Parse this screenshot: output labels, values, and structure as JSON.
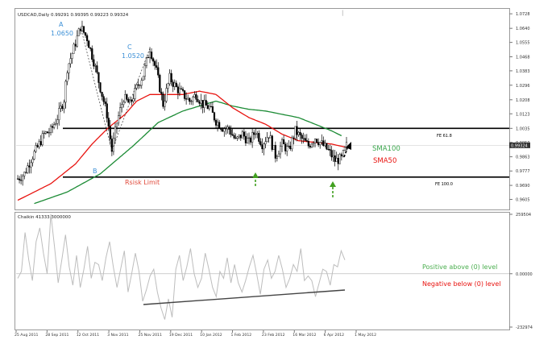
{
  "chart_data": [
    {
      "type": "candlestick",
      "title": "USDCAD,Daily  0.99291 0.99395 0.99223 0.99324",
      "ylim": [
        0.9554,
        1.0753
      ],
      "y_ticks": [
        "1.0728",
        "1.0640",
        "1.0555",
        "1.0468",
        "1.0383",
        "1.0296",
        "1.0208",
        "1.0123",
        "1.0035",
        "0.9950",
        "0.9863",
        "0.9777",
        "0.9690",
        "0.9605"
      ],
      "current_price": "0.99324",
      "price_path": [
        [
          0,
          0.973
        ],
        [
          4,
          0.976
        ],
        [
          8,
          0.985
        ],
        [
          12,
          0.992
        ],
        [
          16,
          1.0
        ],
        [
          20,
          1.002
        ],
        [
          24,
          1.01
        ],
        [
          28,
          1.021
        ],
        [
          30,
          1.04
        ],
        [
          34,
          1.052
        ],
        [
          38,
          1.065
        ],
        [
          42,
          1.058
        ],
        [
          46,
          1.044
        ],
        [
          50,
          1.028
        ],
        [
          54,
          1.012
        ],
        [
          57,
          0.99
        ],
        [
          60,
          1.007
        ],
        [
          64,
          1.022
        ],
        [
          68,
          1.018
        ],
        [
          72,
          1.028
        ],
        [
          76,
          1.036
        ],
        [
          80,
          1.052
        ],
        [
          84,
          1.038
        ],
        [
          88,
          1.018
        ],
        [
          92,
          1.034
        ],
        [
          96,
          1.028
        ],
        [
          100,
          1.024
        ],
        [
          104,
          1.02
        ],
        [
          108,
          1.024
        ],
        [
          112,
          1.018
        ],
        [
          116,
          1.016
        ],
        [
          120,
          1.008
        ],
        [
          124,
          1.004
        ],
        [
          128,
          1.003
        ],
        [
          132,
          0.996
        ],
        [
          136,
          1.0
        ],
        [
          140,
          0.995
        ],
        [
          144,
          1.002
        ],
        [
          148,
          0.994
        ],
        [
          152,
          1.0
        ],
        [
          156,
          0.987
        ],
        [
          160,
          0.994
        ],
        [
          164,
          0.99
        ],
        [
          168,
          1.002
        ],
        [
          172,
          0.997
        ],
        [
          176,
          0.993
        ],
        [
          180,
          0.998
        ],
        [
          184,
          0.994
        ],
        [
          188,
          0.99
        ],
        [
          192,
          0.984
        ],
        [
          196,
          0.985
        ],
        [
          199,
          0.993
        ]
      ],
      "sma50": [
        [
          0,
          0.96
        ],
        [
          20,
          0.97
        ],
        [
          35,
          0.982
        ],
        [
          45,
          0.994
        ],
        [
          55,
          1.004
        ],
        [
          65,
          1.012
        ],
        [
          72,
          1.02
        ],
        [
          80,
          1.024
        ],
        [
          90,
          1.024
        ],
        [
          100,
          1.024
        ],
        [
          110,
          1.026
        ],
        [
          120,
          1.024
        ],
        [
          130,
          1.016
        ],
        [
          140,
          1.01
        ],
        [
          150,
          1.006
        ],
        [
          160,
          1.0
        ],
        [
          170,
          0.996
        ],
        [
          180,
          0.995
        ],
        [
          190,
          0.994
        ],
        [
          199,
          0.992
        ]
      ],
      "sma100": [
        [
          10,
          0.958
        ],
        [
          30,
          0.965
        ],
        [
          50,
          0.976
        ],
        [
          70,
          0.993
        ],
        [
          85,
          1.007
        ],
        [
          100,
          1.014
        ],
        [
          110,
          1.017
        ],
        [
          120,
          1.02
        ],
        [
          130,
          1.017
        ],
        [
          140,
          1.015
        ],
        [
          150,
          1.014
        ],
        [
          160,
          1.012
        ],
        [
          170,
          1.01
        ],
        [
          180,
          1.006
        ],
        [
          190,
          1.002
        ],
        [
          196,
          0.999
        ]
      ],
      "pattern_points": [
        {
          "label": "A",
          "price": "1.0650"
        },
        {
          "label": "B",
          "price": ""
        },
        {
          "label": "C",
          "price": "1.0520"
        }
      ],
      "levels": [
        {
          "name": "FE 61.8",
          "value": 1.0035
        },
        {
          "name": "FE 100.0",
          "value": 0.974
        }
      ],
      "labels": {
        "sma100": "SMA100",
        "sma50": "SMA50",
        "limit": "Rsisk Limit"
      }
    },
    {
      "type": "line",
      "title": "Chaikin 41333.3000000",
      "ylim": [
        -232974,
        259504
      ],
      "y_ticks": [
        "259504",
        "0.00000",
        "-232974"
      ],
      "values": [
        -20000,
        10000,
        180000,
        60000,
        -30000,
        140000,
        200000,
        90000,
        0,
        260000,
        120000,
        -40000,
        60000,
        170000,
        30000,
        -50000,
        80000,
        -60000,
        20000,
        120000,
        -20000,
        50000,
        40000,
        -30000,
        70000,
        140000,
        30000,
        -60000,
        20000,
        100000,
        -80000,
        0,
        90000,
        10000,
        -120000,
        -70000,
        -10000,
        20000,
        -80000,
        -150000,
        -200000,
        -110000,
        -190000,
        20000,
        80000,
        -30000,
        30000,
        110000,
        0,
        -60000,
        -20000,
        90000,
        20000,
        -60000,
        -100000,
        10000,
        -20000,
        70000,
        -40000,
        40000,
        -40000,
        -80000,
        -30000,
        30000,
        80000,
        0,
        -90000,
        20000,
        60000,
        -20000,
        10000,
        80000,
        20000,
        -60000,
        -20000,
        40000,
        10000,
        110000,
        -30000,
        -10000,
        -30000,
        -100000,
        -40000,
        20000,
        10000,
        -50000,
        40000,
        30000,
        100000,
        60000
      ],
      "x_tick_labels": [
        "25 Aug 2011",
        "28 Sep 2011",
        "12 Oct 2011",
        "3 Nov 2011",
        "25 Nov 2011",
        "19 Dec 2011",
        "10 Jan 2012",
        "1 Feb 2012",
        "23 Feb 2012",
        "16 Mar 2012",
        "6 Apr 2012",
        "1 May 2012"
      ],
      "labels": {
        "positive": "Positive above (0) level",
        "negative": "Negative below (0) level"
      }
    }
  ],
  "colors": {
    "price": "#000000",
    "sma50": "#e8130f",
    "sma100": "#1d8c36",
    "pattern_label": "#3b8fd6",
    "positive_text": "#4caf50",
    "negative_text": "#e8130f",
    "chaikin": "#bdbdbd",
    "arrow_green": "#41a020",
    "limit_text": "#e0493a"
  }
}
